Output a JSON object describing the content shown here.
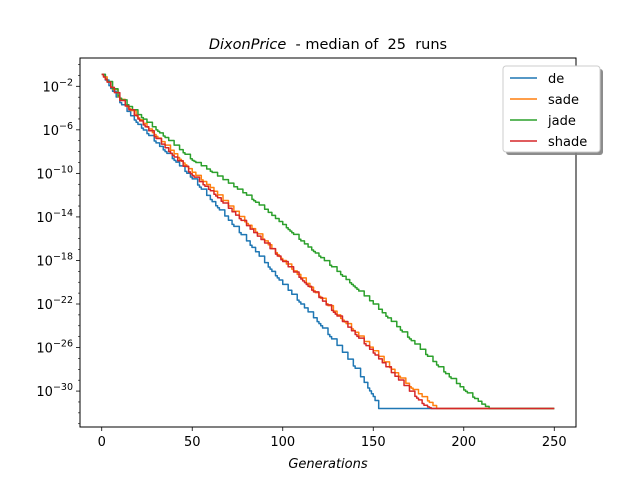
{
  "chart_data": {
    "type": "line",
    "title_italic": "DixonPrice",
    "title_rest": "  - median of  25  runs",
    "xlabel": "Generations",
    "ylabel": "",
    "xlim": [
      -12,
      262
    ],
    "ylim_log10": [
      -33.3,
      0.6
    ],
    "yscale": "log",
    "grid": false,
    "legend_placement": "top-right",
    "x_ticks": [
      0,
      50,
      100,
      150,
      200,
      250
    ],
    "y_ticks": [
      {
        "exp": -2,
        "base": "10",
        "sup": "−2"
      },
      {
        "exp": -6,
        "base": "10",
        "sup": "−6"
      },
      {
        "exp": -10,
        "base": "10",
        "sup": "−10"
      },
      {
        "exp": -14,
        "base": "10",
        "sup": "−14"
      },
      {
        "exp": -18,
        "base": "10",
        "sup": "−18"
      },
      {
        "exp": -22,
        "base": "10",
        "sup": "−22"
      },
      {
        "exp": -26,
        "base": "10",
        "sup": "−26"
      },
      {
        "exp": -30,
        "base": "10",
        "sup": "−30"
      }
    ],
    "series": [
      {
        "name": "de",
        "color": "#1f77b4",
        "x_end": 250,
        "points": [
          [
            0,
            -0.9
          ],
          [
            10,
            -3.5
          ],
          [
            20,
            -5.5
          ],
          [
            30,
            -7.2
          ],
          [
            40,
            -8.8
          ],
          [
            50,
            -10.5
          ],
          [
            60,
            -12.4
          ],
          [
            70,
            -14.3
          ],
          [
            80,
            -16.2
          ],
          [
            90,
            -18.2
          ],
          [
            100,
            -20.2
          ],
          [
            110,
            -22.0
          ],
          [
            120,
            -23.8
          ],
          [
            130,
            -25.8
          ],
          [
            140,
            -27.9
          ],
          [
            150,
            -30.5
          ],
          [
            153,
            -31.6
          ],
          [
            250,
            -31.6
          ]
        ]
      },
      {
        "name": "sade",
        "color": "#ff7f0e",
        "x_end": 250,
        "points": [
          [
            0,
            -0.9
          ],
          [
            10,
            -3.2
          ],
          [
            20,
            -4.9
          ],
          [
            30,
            -6.6
          ],
          [
            40,
            -8.2
          ],
          [
            50,
            -9.9
          ],
          [
            60,
            -11.3
          ],
          [
            70,
            -13.0
          ],
          [
            80,
            -14.6
          ],
          [
            90,
            -16.2
          ],
          [
            100,
            -18.0
          ],
          [
            110,
            -19.6
          ],
          [
            120,
            -21.3
          ],
          [
            130,
            -23.0
          ],
          [
            140,
            -24.6
          ],
          [
            150,
            -26.3
          ],
          [
            160,
            -28.0
          ],
          [
            170,
            -29.6
          ],
          [
            180,
            -30.9
          ],
          [
            185,
            -31.6
          ],
          [
            250,
            -31.6
          ]
        ]
      },
      {
        "name": "jade",
        "color": "#2ca02c",
        "x_end": 250,
        "points": [
          [
            0,
            -0.9
          ],
          [
            10,
            -3.1
          ],
          [
            20,
            -4.6
          ],
          [
            30,
            -6.0
          ],
          [
            40,
            -7.4
          ],
          [
            50,
            -8.8
          ],
          [
            60,
            -9.8
          ],
          [
            70,
            -10.9
          ],
          [
            80,
            -12.0
          ],
          [
            90,
            -13.3
          ],
          [
            100,
            -14.7
          ],
          [
            110,
            -16.2
          ],
          [
            120,
            -17.6
          ],
          [
            130,
            -19.0
          ],
          [
            140,
            -20.5
          ],
          [
            150,
            -22.0
          ],
          [
            160,
            -23.6
          ],
          [
            170,
            -25.2
          ],
          [
            180,
            -26.8
          ],
          [
            190,
            -28.4
          ],
          [
            200,
            -29.9
          ],
          [
            210,
            -31.2
          ],
          [
            214,
            -31.6
          ],
          [
            250,
            -31.6
          ]
        ]
      },
      {
        "name": "shade",
        "color": "#d62728",
        "x_end": 250,
        "points": [
          [
            0,
            -0.9
          ],
          [
            10,
            -3.3
          ],
          [
            20,
            -5.0
          ],
          [
            30,
            -6.8
          ],
          [
            40,
            -8.5
          ],
          [
            50,
            -10.2
          ],
          [
            60,
            -11.6
          ],
          [
            70,
            -13.2
          ],
          [
            80,
            -14.8
          ],
          [
            90,
            -16.4
          ],
          [
            100,
            -18.1
          ],
          [
            110,
            -19.7
          ],
          [
            120,
            -21.4
          ],
          [
            130,
            -23.1
          ],
          [
            140,
            -24.8
          ],
          [
            150,
            -26.5
          ],
          [
            160,
            -28.3
          ],
          [
            170,
            -30.0
          ],
          [
            178,
            -31.3
          ],
          [
            182,
            -31.6
          ],
          [
            250,
            -31.6
          ]
        ]
      }
    ]
  }
}
